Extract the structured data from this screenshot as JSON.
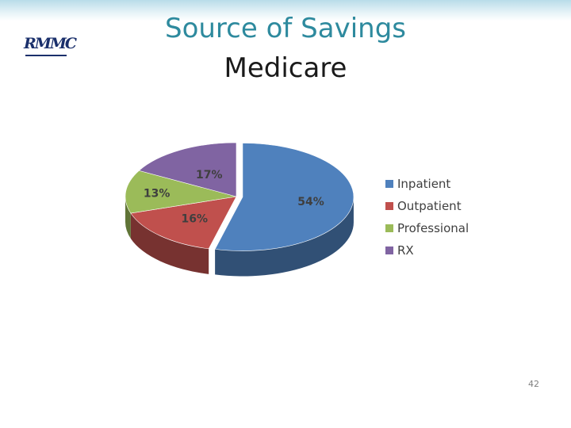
{
  "header": {
    "logo_text": "RMMC",
    "title": "Source of Savings",
    "subtitle": "Medicare"
  },
  "chart_data": {
    "type": "pie",
    "style": "3d-exploded",
    "title": "",
    "legend_position": "right",
    "slices": [
      {
        "name": "Inpatient",
        "value": 54,
        "label": "54%",
        "color": "#4f81bd"
      },
      {
        "name": "Outpatient",
        "value": 16,
        "label": "16%",
        "color": "#c0504d"
      },
      {
        "name": "Professional",
        "value": 13,
        "label": "13%",
        "color": "#9bbb59"
      },
      {
        "name": "RX",
        "value": 17,
        "label": "17%",
        "color": "#8064a2"
      }
    ]
  },
  "footer": {
    "page_number": "42"
  }
}
